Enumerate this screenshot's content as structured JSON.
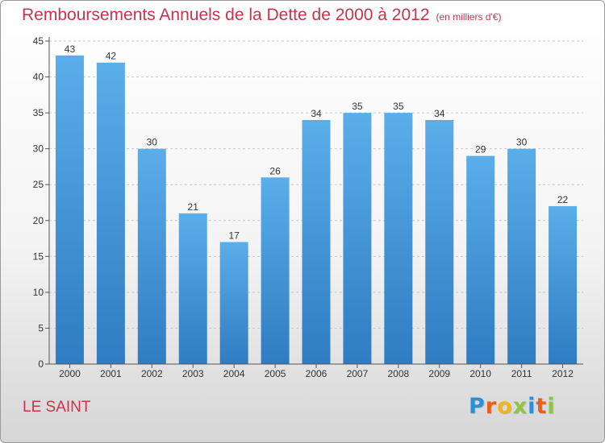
{
  "chart_data": {
    "type": "bar",
    "title": "Remboursements Annuels de la Dette de 2000 à 2012",
    "subtitle": "(en milliers d'€)",
    "categories": [
      "2000",
      "2001",
      "2002",
      "2003",
      "2004",
      "2005",
      "2006",
      "2007",
      "2008",
      "2009",
      "2010",
      "2011",
      "2012"
    ],
    "values": [
      43,
      42,
      30,
      21,
      17,
      26,
      34,
      35,
      35,
      34,
      29,
      30,
      22
    ],
    "ylim": [
      0,
      45
    ],
    "yticks": [
      0,
      5,
      10,
      15,
      20,
      25,
      30,
      35,
      40,
      45
    ],
    "grid": true,
    "bar_color": "#3f8fd6"
  },
  "location_label": "LE SAINT",
  "brand": {
    "letters": [
      {
        "char": "P",
        "color": "#2d8fd5"
      },
      {
        "char": "r",
        "color": "#e8611c"
      },
      {
        "char": "o",
        "color": "#f2b31b"
      },
      {
        "char": "x",
        "color": "#8dc63f"
      },
      {
        "char": "i",
        "color": "#2d8fd5"
      },
      {
        "char": "t",
        "color": "#e8611c"
      },
      {
        "char": "i",
        "color": "#8dc63f"
      }
    ]
  },
  "colors": {
    "title": "#c8344a",
    "axis": "#555555",
    "grid": "#c9c9c9"
  }
}
